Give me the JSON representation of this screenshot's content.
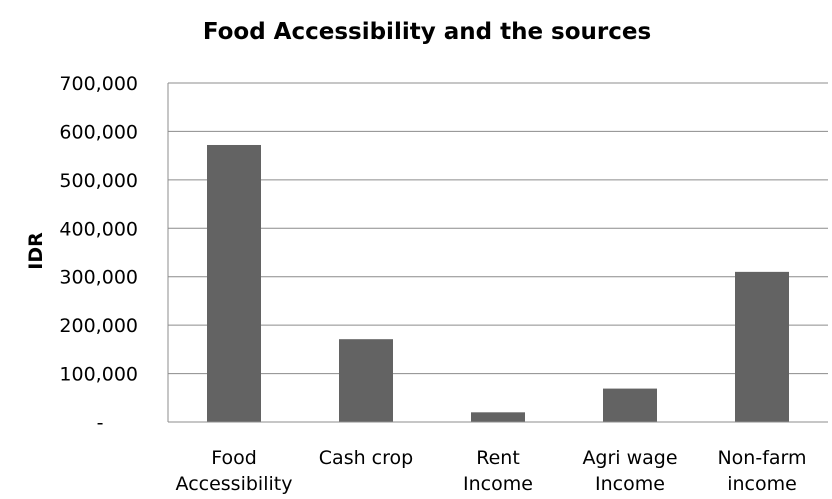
{
  "chart_data": {
    "type": "bar",
    "title": "Food Accessibility and the sources",
    "xlabel": "",
    "ylabel": "IDR",
    "categories": [
      [
        "Food",
        "Accessibility"
      ],
      [
        "Cash crop"
      ],
      [
        "Rent",
        "Income"
      ],
      [
        "Agri wage",
        "Income"
      ],
      [
        "Non-farm",
        "income"
      ]
    ],
    "values": [
      572000,
      171000,
      20000,
      69000,
      310000
    ],
    "ylim": [
      0,
      700000
    ],
    "yticks": [
      0,
      100000,
      200000,
      300000,
      400000,
      500000,
      600000,
      700000
    ],
    "ytick_labels": [
      "-",
      "100,000",
      "200,000",
      "300,000",
      "400,000",
      "500,000",
      "600,000",
      "700,000"
    ],
    "grid": true,
    "legend": "none",
    "bar_color": "#636363"
  }
}
